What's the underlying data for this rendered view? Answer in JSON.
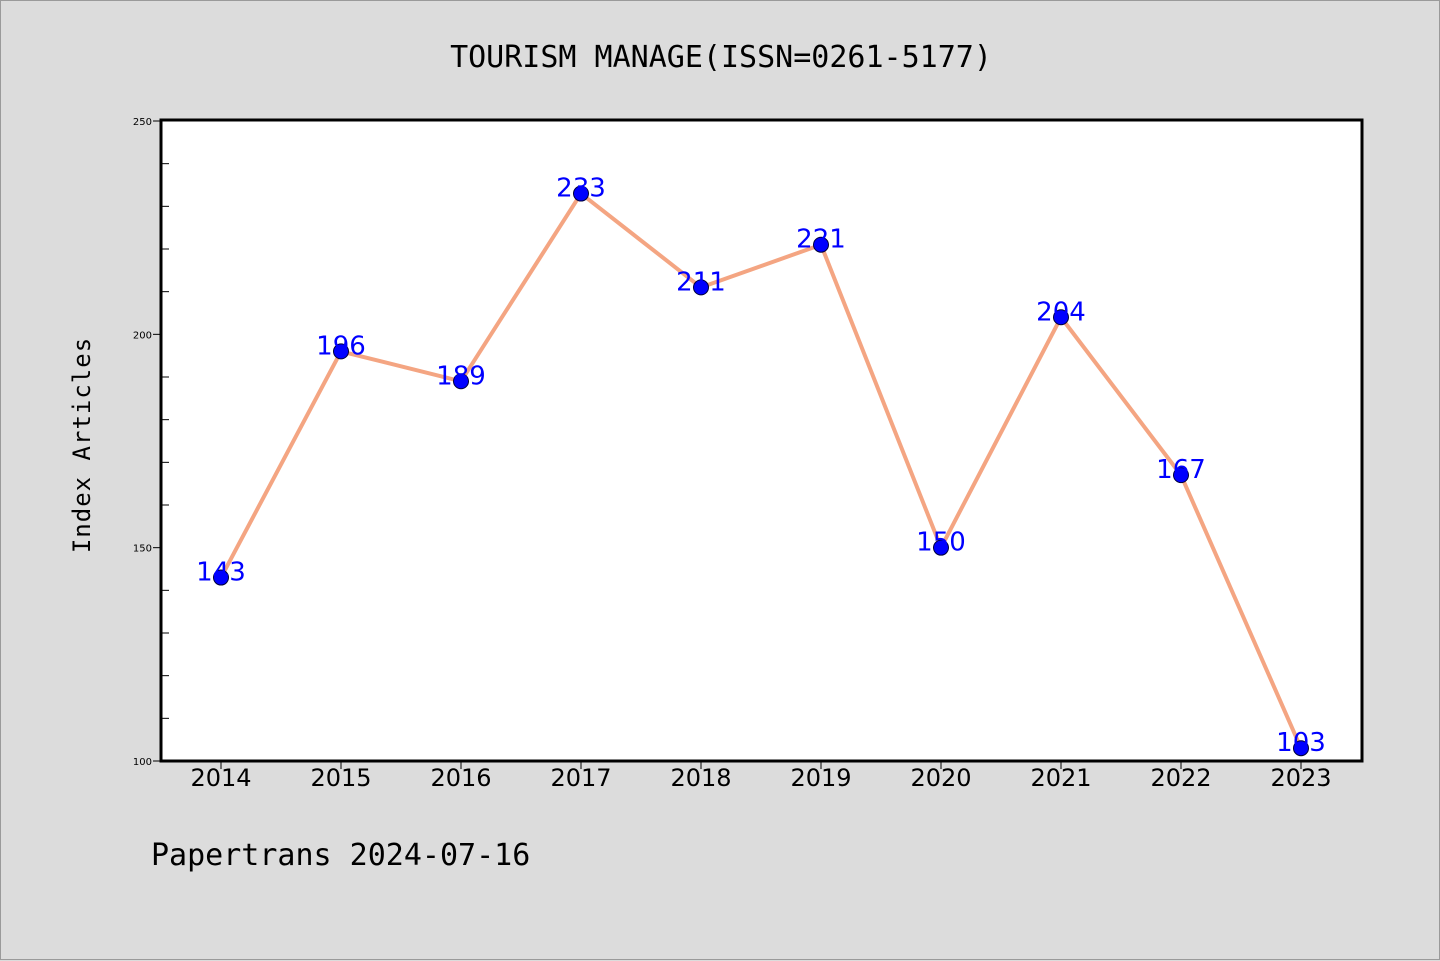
{
  "chart_data": {
    "type": "line",
    "title": "TOURISM MANAGE(ISSN=0261-5177)",
    "xlabel": "",
    "ylabel": "Index Articles",
    "categories": [
      "2014",
      "2015",
      "2016",
      "2017",
      "2018",
      "2019",
      "2020",
      "2021",
      "2022",
      "2023"
    ],
    "series": [
      {
        "values": [
          143,
          196,
          189,
          233,
          211,
          221,
          150,
          204,
          167,
          103
        ]
      }
    ],
    "data_labels": [
      "143",
      "196",
      "189",
      "233",
      "211",
      "221",
      "150",
      "204",
      "167",
      "103"
    ],
    "ylim": [
      100,
      250
    ],
    "yticks": [
      "100",
      "150",
      "200",
      "250"
    ],
    "grid": false,
    "line_color": "#f4a582",
    "marker_color": "#0000ff",
    "label_color": "#0000ff"
  },
  "footer": "Papertrans 2024-07-16"
}
